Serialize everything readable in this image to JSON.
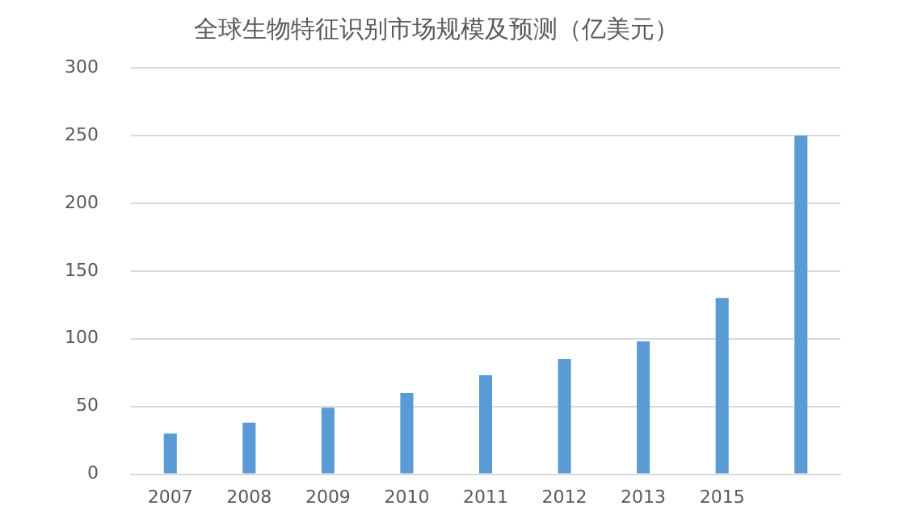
{
  "chart_data": {
    "type": "bar",
    "title": "全球生物特征识别市场规模及预测（亿美元）",
    "categories": [
      "2007",
      "2008",
      "2009",
      "2010",
      "2011",
      "2012",
      "2013",
      "2015",
      null
    ],
    "values": [
      30,
      38,
      49,
      60,
      73,
      85,
      98,
      130,
      250
    ],
    "color": "#5b9bd5",
    "ylim": [
      0,
      300
    ],
    "yticks": [
      0,
      50,
      100,
      150,
      200,
      250,
      300
    ],
    "grid": "y"
  }
}
